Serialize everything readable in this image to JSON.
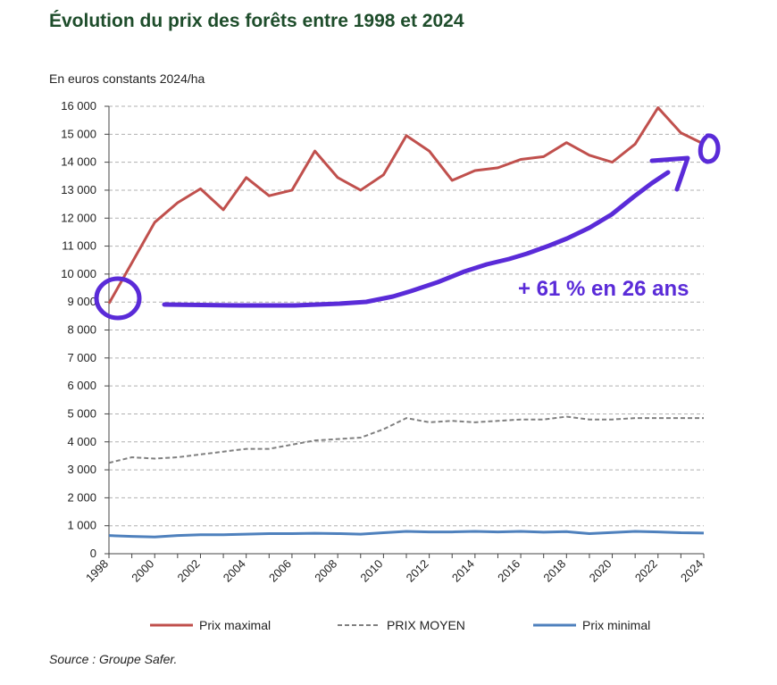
{
  "header": {
    "title": "Évolution du prix des forêts entre 1998 et 2024",
    "unit": "En euros constants 2024/ha"
  },
  "footer": {
    "source": "Source : Groupe Safer."
  },
  "annotation": {
    "text": "+ 61 % en 26 ans",
    "color": "#5a2bd8"
  },
  "chart_data": {
    "type": "line",
    "title": "Évolution du prix des forêts entre 1998 et 2024",
    "ylabel": "En euros constants 2024/ha",
    "xlabel": "",
    "ylim": [
      0,
      16000
    ],
    "yticks": [
      0,
      1000,
      2000,
      3000,
      4000,
      5000,
      6000,
      7000,
      8000,
      9000,
      10000,
      11000,
      12000,
      13000,
      14000,
      15000,
      16000
    ],
    "ytick_labels": [
      "0",
      "1 000",
      "2 000",
      "3 000",
      "4 000",
      "5 000",
      "6 000",
      "7 000",
      "8 000",
      "9 000",
      "10 000",
      "11 000",
      "12 000",
      "13 000",
      "14 000",
      "15 000",
      "16 000"
    ],
    "x": [
      1998,
      1999,
      2000,
      2001,
      2002,
      2003,
      2004,
      2005,
      2006,
      2007,
      2008,
      2009,
      2010,
      2011,
      2012,
      2013,
      2014,
      2015,
      2016,
      2017,
      2018,
      2019,
      2020,
      2021,
      2022,
      2023,
      2024
    ],
    "xticks": [
      "1998",
      "2000",
      "2002",
      "2004",
      "2006",
      "2008",
      "2010",
      "2012",
      "2014",
      "2016",
      "2018",
      "2020",
      "2022",
      "2024"
    ],
    "grid": true,
    "series": [
      {
        "name": "Prix maximal",
        "color": "#c0504d",
        "style": "solid",
        "values": [
          8950,
          10400,
          11850,
          12550,
          13050,
          12300,
          13450,
          12800,
          13000,
          14400,
          13450,
          13000,
          13550,
          14950,
          14400,
          13350,
          13700,
          13800,
          14100,
          14200,
          14700,
          14250,
          14000,
          14650,
          15950,
          15050,
          14650
        ]
      },
      {
        "name": "PRIX MOYEN",
        "color": "#808080",
        "style": "dashed",
        "values": [
          3250,
          3450,
          3400,
          3450,
          3550,
          3650,
          3750,
          3750,
          3900,
          4050,
          4100,
          4150,
          4450,
          4850,
          4700,
          4750,
          4700,
          4750,
          4800,
          4800,
          4900,
          4800,
          4800,
          4850,
          4850,
          4850,
          4850
        ]
      },
      {
        "name": "Prix minimal",
        "color": "#4f81bd",
        "style": "solid",
        "values": [
          650,
          620,
          600,
          650,
          680,
          680,
          700,
          720,
          720,
          730,
          720,
          700,
          750,
          800,
          780,
          780,
          800,
          780,
          800,
          770,
          790,
          720,
          760,
          800,
          780,
          750,
          740
        ]
      }
    ],
    "legend": {
      "position": "bottom",
      "entries": [
        "Prix maximal",
        "PRIX MOYEN",
        "Prix minimal"
      ]
    }
  }
}
